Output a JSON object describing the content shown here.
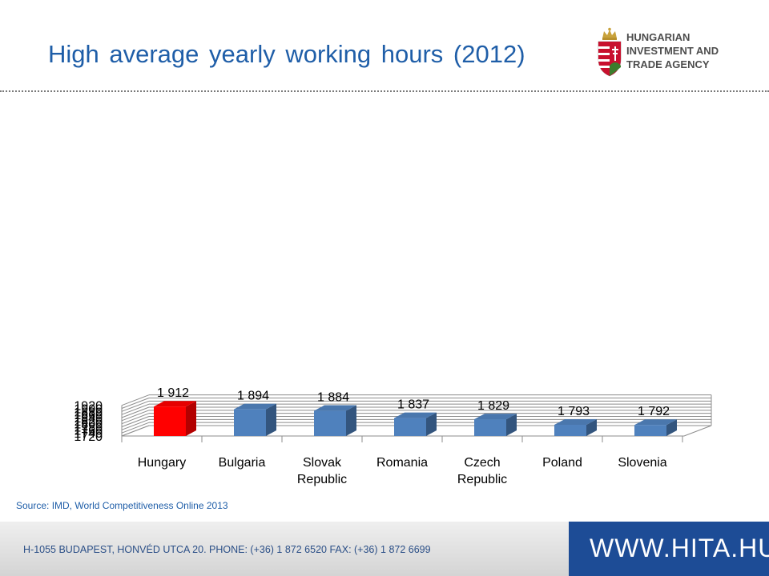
{
  "title": "High average yearly working hours (2012)",
  "logo": {
    "lines": [
      "HUNGARIAN",
      "INVESTMENT AND",
      "TRADE AGENCY"
    ],
    "icon": "hungarian-coat-of-arms-icon"
  },
  "source": "Source: IMD, World Competitiveness Online 2013",
  "footer": {
    "address": "H-1055 BUDAPEST, HONVÉD UTCA 20. PHONE: (+36) 1 872 6520  FAX: (+36) 1 872 6699",
    "website": "WWW.HITA.HU"
  },
  "colors": {
    "highlight": "#ff0000",
    "bar": "#4f81bd",
    "title": "#1f5ea8",
    "footer_band": "#1d4c96"
  },
  "chart_data": {
    "type": "bar",
    "title": "",
    "xlabel": "",
    "ylabel": "",
    "categories": [
      [
        "Hungary"
      ],
      [
        "Bulgaria"
      ],
      [
        "Slovak",
        "Republic"
      ],
      [
        "Romania"
      ],
      [
        "Czech",
        "Republic"
      ],
      [
        "Poland"
      ],
      [
        "Slovenia"
      ]
    ],
    "values": [
      1912,
      1894,
      1884,
      1837,
      1829,
      1793,
      1792
    ],
    "data_labels": [
      "1 912",
      "1 894",
      "1 884",
      "1 837",
      "1 829",
      "1 793",
      "1 792"
    ],
    "highlight_index": 0,
    "ylim": [
      1720,
      1920
    ],
    "yticks": [
      1720,
      1740,
      1760,
      1780,
      1800,
      1820,
      1840,
      1860,
      1880,
      1900,
      1920
    ],
    "grid": true,
    "style": "3d"
  }
}
